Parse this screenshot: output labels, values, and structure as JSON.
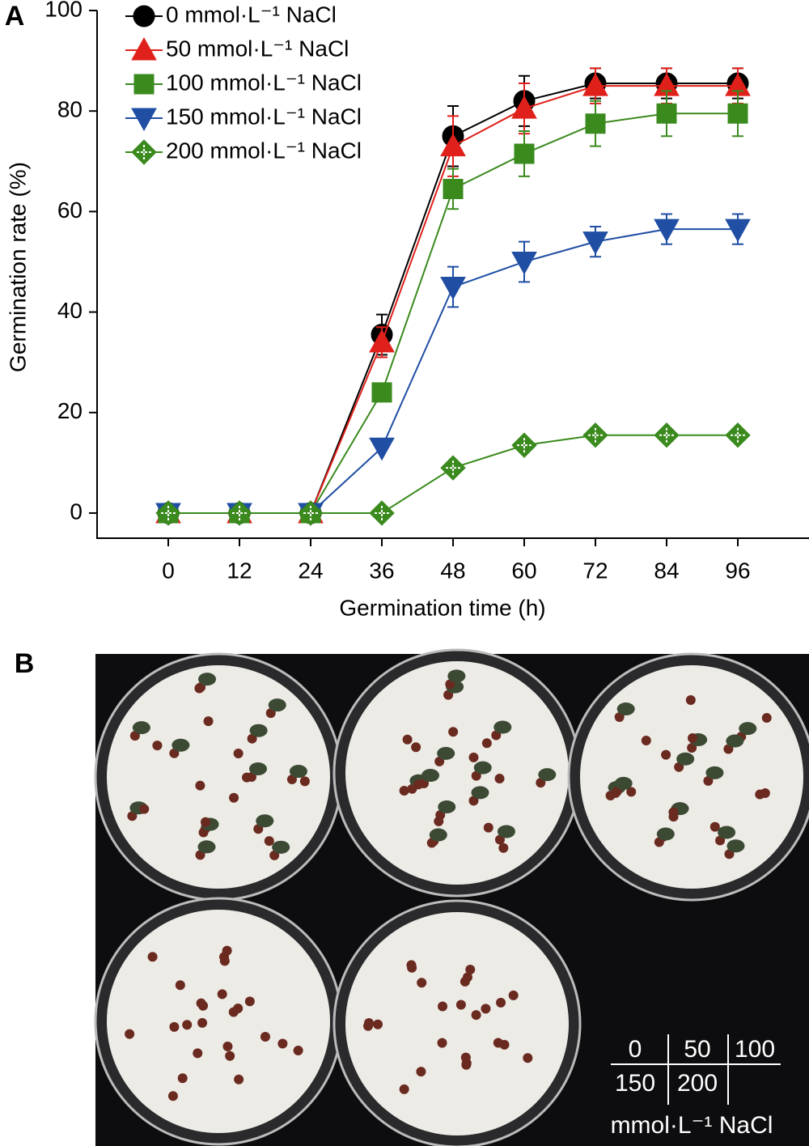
{
  "chart_data": {
    "type": "line",
    "panel_label": "A",
    "x_label": "Germination time (h)",
    "y_label": "Germination rate (%)",
    "x": [
      0,
      12,
      24,
      36,
      48,
      60,
      72,
      84,
      96
    ],
    "xlim": [
      -12,
      108
    ],
    "xticks": [
      0,
      12,
      24,
      36,
      48,
      60,
      72,
      84,
      96
    ],
    "ylim": [
      -5,
      100
    ],
    "yticks": [
      0,
      20,
      40,
      60,
      80,
      100
    ],
    "legend": "upper left",
    "series": [
      {
        "name": "0 mmol·L⁻¹ NaCl",
        "color": "#000000",
        "marker": "circle",
        "values": [
          0,
          0,
          0,
          35.5,
          75,
          82,
          85.5,
          85.5,
          85.5
        ],
        "errors": [
          0,
          0,
          0,
          4,
          6,
          5,
          3,
          3,
          3
        ]
      },
      {
        "name": "50 mmol·L⁻¹ NaCl",
        "color": "#e0201b",
        "marker": "triangle-up",
        "values": [
          0,
          0,
          0,
          34,
          73,
          80.5,
          85,
          85,
          85
        ],
        "errors": [
          0,
          0,
          0,
          3,
          6,
          5,
          3.5,
          3.5,
          3.5
        ]
      },
      {
        "name": "100 mmol·L⁻¹ NaCl",
        "color": "#3a8a1e",
        "marker": "square",
        "values": [
          0,
          0,
          0,
          24,
          64.5,
          71.5,
          77.5,
          79.5,
          79.5
        ],
        "errors": [
          0,
          0,
          0,
          0,
          4,
          4.5,
          4.5,
          4.5,
          4.5
        ]
      },
      {
        "name": "150 mmol·L⁻¹ NaCl",
        "color": "#1f4ea3",
        "marker": "triangle-down",
        "values": [
          0,
          0,
          0,
          13,
          45,
          50,
          54,
          56.5,
          56.5
        ],
        "errors": [
          0,
          0,
          0,
          0,
          4,
          4,
          3,
          3,
          3
        ]
      },
      {
        "name": "200 mmol·L⁻¹ NaCl",
        "color": "#3a8a1e",
        "marker": "diamond",
        "values": [
          0,
          0,
          0,
          0,
          9,
          13.5,
          15.5,
          15.5,
          15.5
        ],
        "errors": [
          0,
          0,
          0,
          0,
          0,
          0,
          1,
          1,
          1
        ]
      }
    ]
  },
  "photo": {
    "panel_label": "B",
    "grid_labels": [
      [
        "0",
        "50",
        "100"
      ],
      [
        "150",
        "200"
      ]
    ],
    "unit": "mmol·L⁻¹ NaCl"
  }
}
